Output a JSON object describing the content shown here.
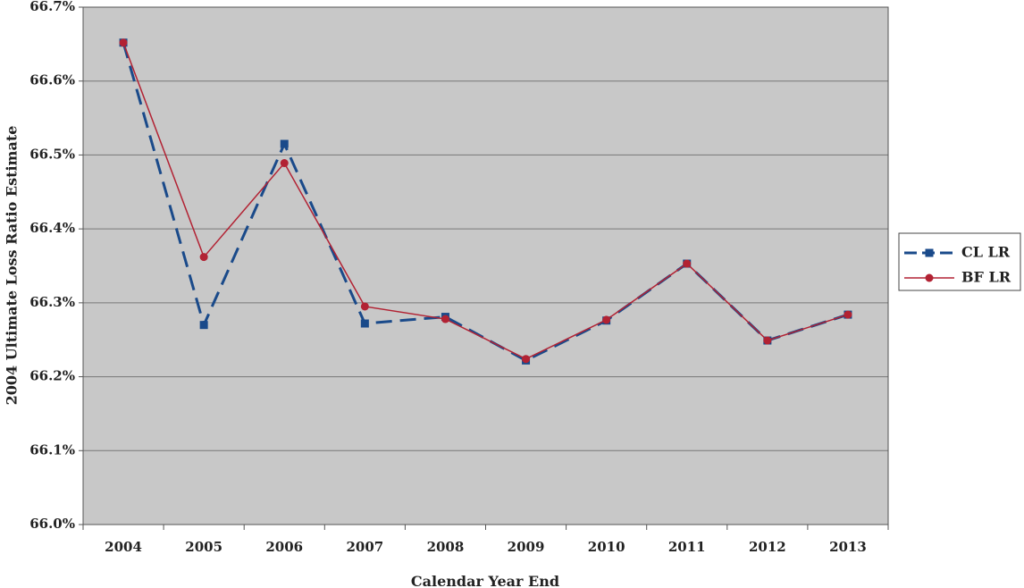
{
  "chart_data": {
    "type": "line",
    "xlabel": "Calendar Year End",
    "ylabel": "2004 Ultimate Loss Ratio Estimate",
    "categories": [
      "2004",
      "2005",
      "2006",
      "2007",
      "2008",
      "2009",
      "2010",
      "2011",
      "2012",
      "2013"
    ],
    "ylim": [
      66.0,
      66.7
    ],
    "yticks": [
      66.0,
      66.1,
      66.2,
      66.3,
      66.4,
      66.5,
      66.6,
      66.7
    ],
    "ytick_labels": [
      "66.0%",
      "66.1%",
      "66.2%",
      "66.3%",
      "66.4%",
      "66.5%",
      "66.6%",
      "66.7%"
    ],
    "grid": "horizontal",
    "legend_position": "right",
    "plot_background": "#c8c8c8",
    "series": [
      {
        "name": "CL LR",
        "color": "#1a4a8a",
        "marker": "square",
        "line_style": "dashed",
        "values": [
          66.652,
          66.27,
          66.515,
          66.272,
          66.281,
          66.222,
          66.276,
          66.353,
          66.249,
          66.284
        ]
      },
      {
        "name": "BF LR",
        "color": "#b22233",
        "marker": "circle",
        "line_style": "solid",
        "values": [
          66.652,
          66.362,
          66.489,
          66.295,
          66.278,
          66.224,
          66.277,
          66.353,
          66.249,
          66.284
        ]
      }
    ]
  }
}
